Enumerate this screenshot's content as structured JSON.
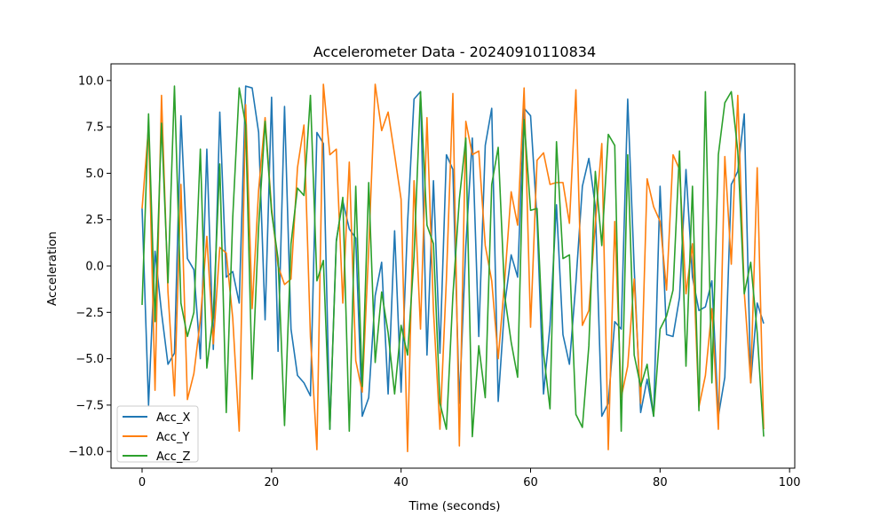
{
  "chart_data": {
    "type": "line",
    "title": "Accelerometer Data - 20240910110834",
    "xlabel": "Time (seconds)",
    "ylabel": "Acceleration",
    "xlim": [
      -4.8,
      100.8
    ],
    "ylim": [
      -10.9,
      10.9
    ],
    "xticks": [
      0,
      20,
      40,
      60,
      80,
      100
    ],
    "yticks": [
      -10.0,
      -7.5,
      -5.0,
      -2.5,
      0.0,
      2.5,
      5.0,
      7.5,
      10.0
    ],
    "xtick_labels": [
      "0",
      "20",
      "40",
      "60",
      "80",
      "100"
    ],
    "ytick_labels": [
      "−10.0",
      "−7.5",
      "−5.0",
      "−2.5",
      "0.0",
      "2.5",
      "5.0",
      "7.5",
      "10.0"
    ],
    "grid": false,
    "legend_position": "lower-left",
    "x": [
      0,
      1,
      2,
      3,
      4,
      5,
      6,
      7,
      8,
      9,
      10,
      11,
      12,
      13,
      14,
      15,
      16,
      17,
      18,
      19,
      20,
      21,
      22,
      23,
      24,
      25,
      26,
      27,
      28,
      29,
      30,
      31,
      32,
      33,
      34,
      35,
      36,
      37,
      38,
      39,
      40,
      41,
      42,
      43,
      44,
      45,
      46,
      47,
      48,
      49,
      50,
      51,
      52,
      53,
      54,
      55,
      56,
      57,
      58,
      59,
      60,
      61,
      62,
      63,
      64,
      65,
      66,
      67,
      68,
      69,
      70,
      71,
      72,
      73,
      74,
      75,
      76,
      77,
      78,
      79,
      80,
      81,
      82,
      83,
      84,
      85,
      86,
      87,
      88,
      89,
      90,
      91,
      92,
      93,
      94,
      95,
      96
    ],
    "series": [
      {
        "name": "Acc_X",
        "color": "#1f77b4",
        "values": [
          3.1,
          -7.5,
          0.8,
          -2.5,
          -5.3,
          -4.7,
          8.1,
          0.4,
          -0.2,
          -5.0,
          6.3,
          -4.5,
          8.3,
          -0.6,
          -0.3,
          -2.0,
          9.7,
          9.6,
          7.2,
          -2.9,
          9.1,
          -4.6,
          8.6,
          -3.4,
          -5.9,
          -6.3,
          -7.0,
          7.2,
          6.6,
          -8.8,
          1.4,
          3.5,
          2.0,
          1.5,
          -8.1,
          -7.1,
          -1.6,
          0.2,
          -6.9,
          1.9,
          -6.8,
          2.3,
          9.0,
          9.4,
          -4.8,
          4.6,
          -4.7,
          6.0,
          5.2,
          -7.4,
          1.1,
          6.9,
          -3.8,
          6.5,
          8.5,
          -7.3,
          -2.1,
          0.6,
          -0.6,
          8.5,
          8.1,
          2.5,
          -6.9,
          -3.2,
          3.3,
          -3.7,
          -5.3,
          -0.9,
          4.3,
          5.8,
          3.2,
          -8.1,
          -7.4,
          -3.0,
          -3.4,
          9.0,
          -0.1,
          -7.9,
          -6.1,
          -8.1,
          4.3,
          -3.7,
          -3.8,
          -1.7,
          5.2,
          -0.6,
          -2.4,
          -2.2,
          -0.8,
          -8.1,
          -6.0,
          4.4,
          5.1,
          8.2,
          -6.3,
          -2.0,
          -3.1
        ]
      },
      {
        "name": "Acc_Y",
        "color": "#ff7f0e",
        "values": [
          3.1,
          7.5,
          -6.7,
          9.2,
          -1.4,
          -7.0,
          4.4,
          -7.2,
          -5.8,
          -2.9,
          1.6,
          -4.2,
          1.0,
          0.7,
          -2.8,
          -8.9,
          8.7,
          -2.3,
          4.1,
          8.0,
          3.1,
          0.0,
          -1.0,
          -0.7,
          5.3,
          7.6,
          -3.8,
          -9.9,
          9.8,
          6.0,
          6.3,
          -2.0,
          5.6,
          -5.1,
          -6.8,
          0.9,
          9.8,
          7.3,
          8.3,
          6.0,
          3.6,
          -10.0,
          4.6,
          -3.4,
          8.0,
          -2.4,
          -8.8,
          -0.7,
          9.3,
          -9.7,
          7.8,
          6.0,
          6.2,
          1.1,
          -0.8,
          -5.0,
          -0.8,
          4.0,
          2.2,
          9.6,
          -3.3,
          5.7,
          6.1,
          4.4,
          4.5,
          4.5,
          2.3,
          9.5,
          -3.2,
          -2.4,
          2.3,
          6.6,
          -9.9,
          2.4,
          -7.1,
          -5.4,
          -0.7,
          -7.4,
          4.7,
          3.2,
          2.4,
          -1.3,
          6.0,
          5.2,
          -1.5,
          1.2,
          -7.6,
          -5.9,
          -2.3,
          -8.8,
          5.9,
          0.1,
          9.2,
          -1.4,
          -6.3,
          5.3,
          -8.8
        ]
      },
      {
        "name": "Acc_Z",
        "color": "#2ca02c",
        "values": [
          -2.1,
          8.2,
          -3.0,
          7.7,
          -0.9,
          9.7,
          -2.0,
          -3.8,
          -2.5,
          6.3,
          -5.5,
          -2.6,
          5.5,
          -7.9,
          2.6,
          9.6,
          7.6,
          -6.1,
          2.1,
          7.8,
          2.9,
          0.4,
          -8.6,
          1.2,
          4.2,
          3.8,
          9.2,
          -0.8,
          0.3,
          -8.8,
          1.3,
          3.7,
          -8.9,
          4.3,
          -6.5,
          4.5,
          -5.2,
          -1.4,
          -3.6,
          -6.9,
          -3.2,
          -4.8,
          0.5,
          9.4,
          2.2,
          1.2,
          -7.4,
          -8.8,
          -1.6,
          3.6,
          6.9,
          -9.2,
          -4.3,
          -7.1,
          4.4,
          6.4,
          -1.6,
          -4.1,
          -6.0,
          7.9,
          3.0,
          3.1,
          -4.7,
          -7.7,
          6.7,
          0.4,
          0.6,
          -8.0,
          -8.7,
          -4.3,
          5.1,
          1.1,
          7.1,
          6.5,
          -8.9,
          6.0,
          -4.8,
          -6.5,
          -5.3,
          -8.1,
          -3.4,
          -2.7,
          -1.3,
          6.2,
          -5.4,
          4.3,
          -7.8,
          9.4,
          -6.3,
          6.0,
          8.8,
          9.4,
          6.2,
          -1.5,
          0.2,
          -3.6,
          -9.2
        ]
      }
    ]
  }
}
